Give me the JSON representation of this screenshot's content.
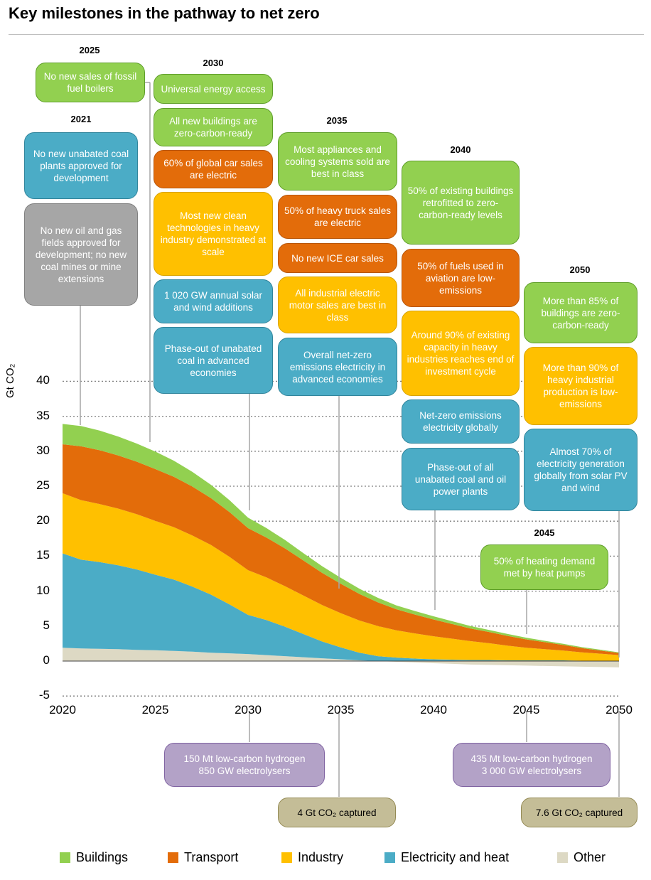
{
  "title": "Key milestones in the pathway to net zero",
  "ylabel": "Gt CO₂",
  "colors": {
    "Buildings": "#92d050",
    "Transport": "#e36c0a",
    "Industry": "#ffc000",
    "Electricity and heat": "#4bacc6",
    "Other": "#ddd9c4"
  },
  "chart_data": {
    "type": "area",
    "title": "",
    "xlabel": "",
    "ylabel": "Gt CO₂",
    "x": [
      2020,
      2021,
      2022,
      2023,
      2024,
      2025,
      2026,
      2027,
      2028,
      2029,
      2030,
      2031,
      2032,
      2033,
      2034,
      2035,
      2036,
      2037,
      2038,
      2039,
      2040,
      2041,
      2042,
      2043,
      2044,
      2045,
      2046,
      2047,
      2048,
      2049,
      2050
    ],
    "xlim": [
      2020,
      2050
    ],
    "ylim": [
      -5,
      40
    ],
    "xticks": [
      "2020",
      "2025",
      "2030",
      "2035",
      "2040",
      "2045",
      "2050"
    ],
    "yticks": [
      "-5",
      "0",
      "5",
      "10",
      "15",
      "20",
      "25",
      "30",
      "35",
      "40"
    ],
    "grid": "dotted horizontal",
    "legend": "bottom",
    "series": [
      {
        "name": "Other",
        "values": [
          1.9,
          1.8,
          1.75,
          1.7,
          1.6,
          1.55,
          1.45,
          1.35,
          1.2,
          1.1,
          1.0,
          0.85,
          0.7,
          0.55,
          0.4,
          0.25,
          0.1,
          0.0,
          -0.1,
          -0.2,
          -0.3,
          -0.4,
          -0.5,
          -0.55,
          -0.6,
          -0.65,
          -0.7,
          -0.75,
          -0.8,
          -0.85,
          -0.9
        ]
      },
      {
        "name": "Electricity and heat",
        "values": [
          13.5,
          12.7,
          12.4,
          12.0,
          11.5,
          10.8,
          10.2,
          9.3,
          8.3,
          7.0,
          5.6,
          5.0,
          4.2,
          3.3,
          2.4,
          1.7,
          1.1,
          0.7,
          0.5,
          0.35,
          0.25,
          0.2,
          0.15,
          0.15,
          0.1,
          0.1,
          0.1,
          0.1,
          0.05,
          0.05,
          0.05
        ]
      },
      {
        "name": "Industry",
        "values": [
          8.6,
          8.5,
          8.3,
          8.1,
          7.9,
          7.7,
          7.5,
          7.3,
          7.1,
          6.8,
          6.4,
          6.1,
          5.8,
          5.5,
          5.2,
          4.9,
          4.6,
          4.3,
          3.9,
          3.6,
          3.3,
          3.0,
          2.7,
          2.4,
          2.1,
          1.8,
          1.6,
          1.4,
          1.2,
          1.0,
          0.8
        ]
      },
      {
        "name": "Transport",
        "values": [
          7.0,
          7.7,
          7.7,
          7.6,
          7.5,
          7.4,
          7.2,
          7.0,
          6.7,
          6.4,
          6.0,
          5.7,
          5.4,
          5.0,
          4.6,
          4.2,
          3.8,
          3.4,
          3.0,
          2.7,
          2.4,
          2.1,
          1.8,
          1.6,
          1.4,
          1.2,
          1.0,
          0.8,
          0.6,
          0.45,
          0.3
        ]
      },
      {
        "name": "Buildings",
        "values": [
          2.9,
          2.9,
          2.8,
          2.7,
          2.6,
          2.5,
          2.3,
          2.1,
          1.9,
          1.7,
          1.5,
          1.35,
          1.2,
          1.05,
          0.95,
          0.85,
          0.75,
          0.65,
          0.55,
          0.5,
          0.45,
          0.4,
          0.35,
          0.3,
          0.27,
          0.24,
          0.2,
          0.17,
          0.14,
          0.12,
          0.1
        ]
      }
    ],
    "annotations": [
      {
        "year": "2021",
        "items": [
          "No new unabated coal plants approved for development",
          "No new oil and gas fields approved for development; no new coal mines or mine extensions"
        ]
      },
      {
        "year": "2025",
        "items": [
          "No new sales of fossil fuel boilers"
        ]
      },
      {
        "year": "2030",
        "items": [
          "Universal energy access",
          "All new buildings are zero-carbon-ready",
          "60% of global car sales are electric",
          "Most new clean technologies in heavy industry demonstrated at scale",
          "1 020 GW annual solar and wind additions",
          "Phase-out of unabated coal in advanced economies"
        ]
      },
      {
        "year": "2035",
        "items": [
          "Most appliances and cooling systems sold are best in class",
          "50% of heavy truck sales are electric",
          "No new ICE car sales",
          "All industrial electric motor sales are best in class",
          "Overall net-zero emissions electricity in advanced economies"
        ]
      },
      {
        "year": "2040",
        "items": [
          "50% of existing buildings retrofitted to zero-carbon-ready levels",
          "50% of fuels used in aviation are low-emissions",
          "Around 90% of existing capacity in heavy industries reaches end of investment cycle",
          "Net-zero emissions electricity globally",
          "Phase-out of all unabated coal and oil power plants"
        ]
      },
      {
        "year": "2045",
        "items": [
          "50% of heating demand met by heat pumps"
        ]
      },
      {
        "year": "2050",
        "items": [
          "More than 85% of buildings are zero-carbon-ready",
          "More than 90% of heavy industrial production is low-emissions",
          "Almost 70% of electricity generation globally from solar PV and wind"
        ]
      }
    ],
    "bottom_annotations": [
      {
        "year": "2030",
        "text": "150 Mt low-carbon hydrogen\n850 GW electrolysers"
      },
      {
        "year": "2035",
        "text": "4 Gt CO₂ captured"
      },
      {
        "year": "2045",
        "text": "435 Mt low-carbon hydrogen\n3 000 GW electrolysers"
      },
      {
        "year": "2050",
        "text": "7.6 Gt CO₂ captured"
      }
    ]
  },
  "legend": [
    "Buildings",
    "Transport",
    "Industry",
    "Electricity and heat",
    "Other"
  ]
}
